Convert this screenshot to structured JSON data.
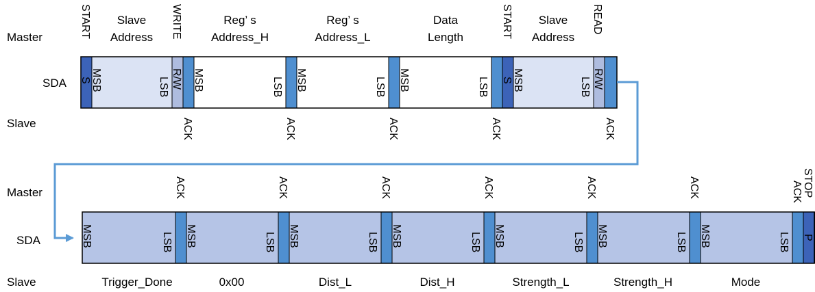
{
  "rows": {
    "master": "Master",
    "sda": "SDA",
    "slave": "Slave"
  },
  "write_frame": {
    "top_labels": {
      "start": "START",
      "slave_address_1": "Slave",
      "slave_address_2": "Address",
      "write": "WRITE",
      "reg_h_1": "Reg’ s",
      "reg_h_2": "Address_H",
      "reg_l_1": "Reg’ s",
      "reg_l_2": "Address_L",
      "data_1": "Data",
      "data_2": "Length",
      "restart": "START",
      "slave_address2_1": "Slave",
      "slave_address2_2": "Address",
      "read": "READ"
    },
    "bits": {
      "s": "S",
      "msb": "MSB",
      "lsb": "LSB",
      "rw": "R/W"
    },
    "acks": [
      "ACK",
      "ACK",
      "ACK",
      "ACK",
      "ACK"
    ]
  },
  "read_frame": {
    "acks": [
      "ACK",
      "ACK",
      "ACK",
      "ACK",
      "ACK",
      "ACK",
      "ACK"
    ],
    "stop": "STOP",
    "p": "P",
    "bits": {
      "msb": "MSB",
      "lsb": "LSB"
    },
    "bytes": [
      "Trigger_Done",
      "0x00",
      "Dist_L",
      "Dist_H",
      "Strength_L",
      "Strength_H",
      "Mode"
    ]
  },
  "colors": {
    "start_bit": "#3c63b8",
    "ack_bit": "#4f8fd0",
    "connector": "#5b9bd5"
  }
}
